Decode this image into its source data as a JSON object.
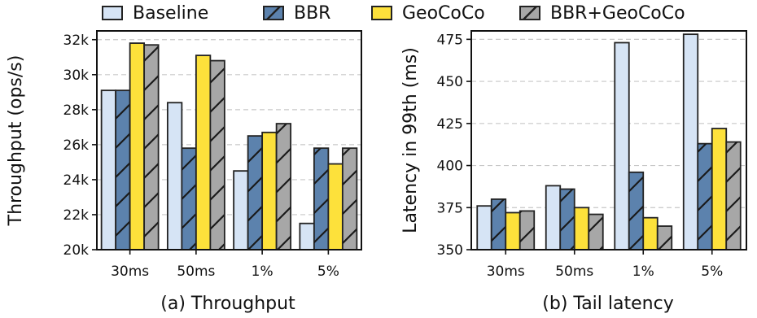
{
  "legend": {
    "items": [
      {
        "label": "Baseline",
        "color": "#d6e4f5",
        "hatch": false
      },
      {
        "label": "BBR",
        "color": "#5c82ad",
        "hatch": true
      },
      {
        "label": "GeoCoCo",
        "color": "#fde13b",
        "hatch": false
      },
      {
        "label": "BBR+GeoCoCo",
        "color": "#a7a7a7",
        "hatch": true
      }
    ]
  },
  "chart_data": [
    {
      "type": "bar",
      "caption": "(a) Throughput",
      "ylabel": "Throughput (ops/s)",
      "categories": [
        "30ms",
        "50ms",
        "1%",
        "5%"
      ],
      "ylim": [
        20000,
        32500
      ],
      "yticks": [
        20000,
        22000,
        24000,
        26000,
        28000,
        30000,
        32000
      ],
      "ytick_labels": [
        "20k",
        "22k",
        "24k",
        "26k",
        "28k",
        "30k",
        "32k"
      ],
      "grid": true,
      "series": [
        {
          "name": "Baseline",
          "values": [
            29100,
            28400,
            24500,
            21500
          ]
        },
        {
          "name": "BBR",
          "values": [
            29100,
            25800,
            26500,
            25800
          ]
        },
        {
          "name": "GeoCoCo",
          "values": [
            31800,
            31100,
            26700,
            24900
          ]
        },
        {
          "name": "BBR+GeoCoCo",
          "values": [
            31700,
            30800,
            27200,
            25800
          ]
        }
      ]
    },
    {
      "type": "bar",
      "caption": "(b) Tail latency",
      "ylabel": "Latency in 99th (ms)",
      "categories": [
        "30ms",
        "50ms",
        "1%",
        "5%"
      ],
      "ylim": [
        350,
        480
      ],
      "yticks": [
        350,
        375,
        400,
        425,
        450,
        475
      ],
      "ytick_labels": [
        "350",
        "375",
        "400",
        "425",
        "450",
        "475"
      ],
      "grid": true,
      "series": [
        {
          "name": "Baseline",
          "values": [
            376,
            388,
            473,
            478
          ]
        },
        {
          "name": "BBR",
          "values": [
            380,
            386,
            396,
            413
          ]
        },
        {
          "name": "GeoCoCo",
          "values": [
            372,
            375,
            369,
            422
          ]
        },
        {
          "name": "BBR+GeoCoCo",
          "values": [
            373,
            371,
            364,
            414
          ]
        }
      ]
    }
  ]
}
